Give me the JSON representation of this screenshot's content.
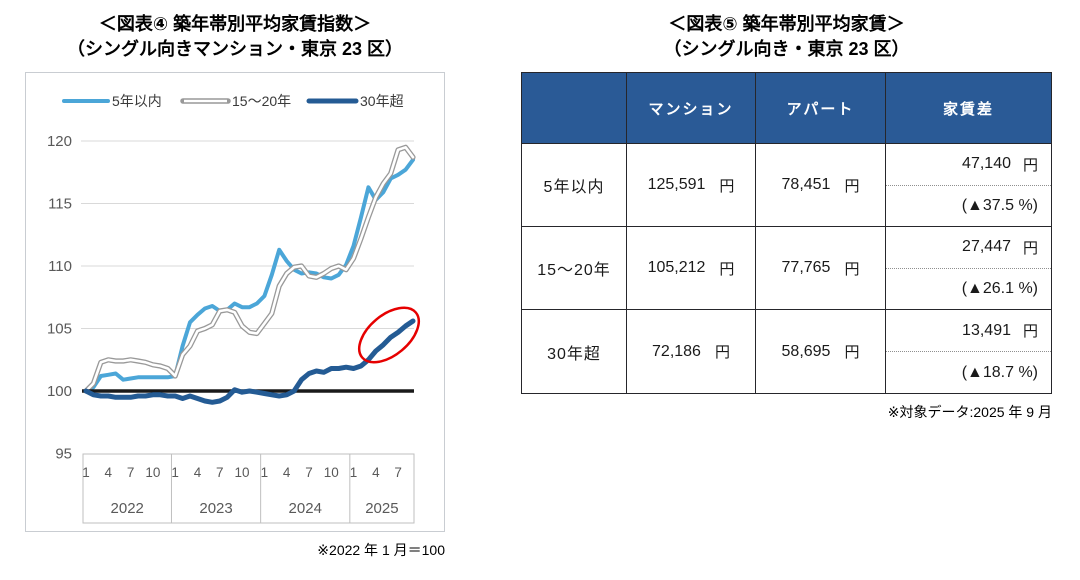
{
  "figure4": {
    "title_line1": "＜図表④ 築年帯別平均家賃指数＞",
    "title_line2": "（シングル向きマンション・東京 23 区）",
    "footnote": "※2022 年 1 月＝100"
  },
  "figure5": {
    "title_line1": "＜図表⑤ 築年帯別平均家賃＞",
    "title_line2": "（シングル向き・東京 23 区）",
    "footnote": "※対象データ:2025 年 9 月"
  },
  "chart_data": [
    {
      "type": "line",
      "title": "築年帯別平均家賃指数（シングル向きマンション・東京 23 区）",
      "x": [
        "2022-01",
        "2022-02",
        "2022-03",
        "2022-04",
        "2022-05",
        "2022-06",
        "2022-07",
        "2022-08",
        "2022-09",
        "2022-10",
        "2022-11",
        "2022-12",
        "2023-01",
        "2023-02",
        "2023-03",
        "2023-04",
        "2023-05",
        "2023-06",
        "2023-07",
        "2023-08",
        "2023-09",
        "2023-10",
        "2023-11",
        "2023-12",
        "2024-01",
        "2024-02",
        "2024-03",
        "2024-04",
        "2024-05",
        "2024-06",
        "2024-07",
        "2024-08",
        "2024-09",
        "2024-10",
        "2024-11",
        "2024-12",
        "2025-01",
        "2025-02",
        "2025-03",
        "2025-04",
        "2025-05",
        "2025-06",
        "2025-07",
        "2025-08",
        "2025-09"
      ],
      "x_year_groups": [
        {
          "year": "2022",
          "tick_months": [
            "1",
            "4",
            "7",
            "10"
          ]
        },
        {
          "year": "2023",
          "tick_months": [
            "1",
            "4",
            "7",
            "10"
          ]
        },
        {
          "year": "2024",
          "tick_months": [
            "1",
            "4",
            "7",
            "10"
          ]
        },
        {
          "year": "2025",
          "tick_months": [
            "1",
            "4",
            "7"
          ]
        }
      ],
      "ylim": [
        95,
        120
      ],
      "yticks": [
        95,
        100,
        105,
        110,
        115,
        120
      ],
      "baseline": 100,
      "grid": true,
      "legend_position": "top",
      "series": [
        {
          "name": "5年以内",
          "color": "#4ba6d8",
          "style": "solid",
          "values": [
            100,
            100.3,
            101.2,
            101.3,
            101.4,
            100.9,
            101.0,
            101.1,
            101.1,
            101.1,
            101.1,
            101.1,
            101.2,
            103.6,
            105.5,
            106.1,
            106.6,
            106.8,
            106.4,
            106.5,
            107.0,
            106.7,
            106.7,
            107.0,
            107.6,
            109.3,
            111.3,
            110.4,
            109.7,
            109.4,
            109.5,
            109.4,
            109.1,
            109.0,
            109.3,
            110.1,
            111.6,
            113.9,
            116.3,
            115.3,
            115.9,
            117.0,
            117.3,
            117.7,
            118.5
          ]
        },
        {
          "name": "15〜20年",
          "color": "#999999",
          "style": "double-outline",
          "values": [
            100,
            100.6,
            102.3,
            102.5,
            102.4,
            102.4,
            102.5,
            102.4,
            102.3,
            102.1,
            102.0,
            101.8,
            101.2,
            102.9,
            103.6,
            104.8,
            105.0,
            105.3,
            106.4,
            106.5,
            106.3,
            105.2,
            104.7,
            104.6,
            105.4,
            106.2,
            108.4,
            109.4,
            109.9,
            110.0,
            109.2,
            109.1,
            109.4,
            109.8,
            110.0,
            109.7,
            110.6,
            112.2,
            113.9,
            115.5,
            116.6,
            117.4,
            119.3,
            119.5,
            118.7
          ]
        },
        {
          "name": "30年超",
          "color": "#245b94",
          "style": "solid-thick",
          "values": [
            100,
            99.7,
            99.6,
            99.6,
            99.5,
            99.5,
            99.5,
            99.6,
            99.6,
            99.7,
            99.7,
            99.6,
            99.6,
            99.4,
            99.6,
            99.4,
            99.2,
            99.1,
            99.2,
            99.5,
            100.1,
            99.9,
            100.0,
            99.9,
            99.8,
            99.7,
            99.6,
            99.7,
            100.0,
            100.9,
            101.4,
            101.6,
            101.5,
            101.8,
            101.8,
            101.9,
            101.8,
            102.0,
            102.5,
            103.2,
            103.7,
            104.3,
            104.7,
            105.2,
            105.6
          ]
        }
      ],
      "annotation": {
        "shape": "ellipse",
        "color": "#e60000",
        "target": "30年超 2025年の上昇局面"
      },
      "footnote": "※2022 年 1 月＝100"
    },
    {
      "type": "table",
      "title": "築年帯別平均家賃（シングル向き・東京 23 区）",
      "columns": [
        "",
        "マンション",
        "アパート",
        "家賃差"
      ],
      "unit": "円",
      "rows": [
        {
          "label": "5年以内",
          "mansion": "125,591",
          "apart": "78,451",
          "diff": "47,140",
          "diff_pct": "(▲37.5 %)"
        },
        {
          "label": "15〜20年",
          "mansion": "105,212",
          "apart": "77,765",
          "diff": "27,447",
          "diff_pct": "(▲26.1 %)"
        },
        {
          "label": "30年超",
          "mansion": "72,186",
          "apart": "58,695",
          "diff": "13,491",
          "diff_pct": "(▲18.7 %)"
        }
      ],
      "footnote": "※対象データ:2025 年 9 月"
    }
  ]
}
